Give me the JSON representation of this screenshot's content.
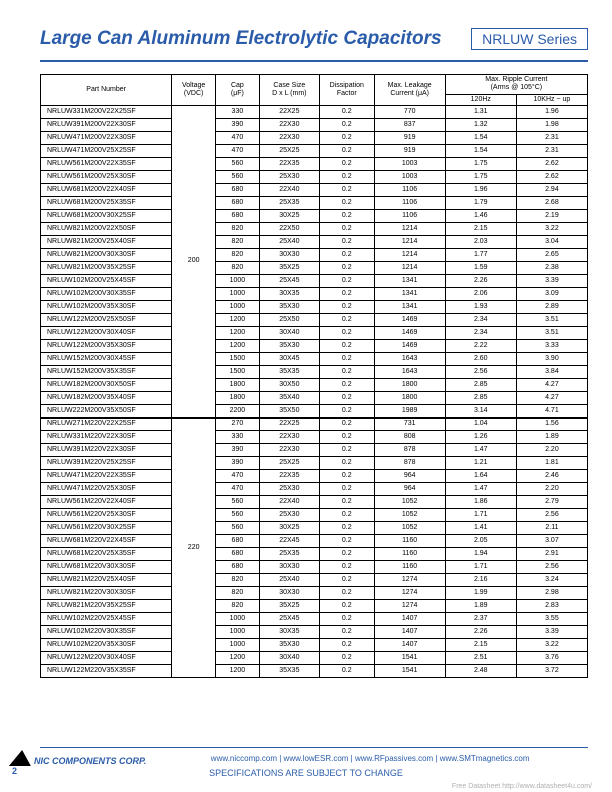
{
  "header": {
    "title": "Large Can Aluminum Electrolytic Capacitors",
    "series": "NRLUW Series"
  },
  "table": {
    "columns": {
      "pn": "Part Number",
      "voltage": "Voltage\n(VDC)",
      "cap": "Cap\n(μF)",
      "case": "Case Size\nD x L (mm)",
      "df": "Dissipation\nFactor",
      "leak": "Max. Leakage\nCurrent (μA)",
      "ripple_group": "Max. Ripple Current\n(Arms @ 105°C)",
      "r1": "120Hz",
      "r2": "10KHz ~ up"
    },
    "groups": [
      {
        "voltage": "200",
        "rows": [
          {
            "pn": "NRLUW331M200V22X25SF",
            "cap": "330",
            "case": "22X25",
            "df": "0.2",
            "leak": "770",
            "r1": "1.31",
            "r2": "1.96"
          },
          {
            "pn": "NRLUW391M200V22X30SF",
            "cap": "390",
            "case": "22X30",
            "df": "0.2",
            "leak": "837",
            "r1": "1.32",
            "r2": "1.98"
          },
          {
            "pn": "NRLUW471M200V22X30SF",
            "cap": "470",
            "case": "22X30",
            "df": "0.2",
            "leak": "919",
            "r1": "1.54",
            "r2": "2.31"
          },
          {
            "pn": "NRLUW471M200V25X25SF",
            "cap": "470",
            "case": "25X25",
            "df": "0.2",
            "leak": "919",
            "r1": "1.54",
            "r2": "2.31"
          },
          {
            "pn": "NRLUW561M200V22X35SF",
            "cap": "560",
            "case": "22X35",
            "df": "0.2",
            "leak": "1003",
            "r1": "1.75",
            "r2": "2.62"
          },
          {
            "pn": "NRLUW561M200V25X30SF",
            "cap": "560",
            "case": "25X30",
            "df": "0.2",
            "leak": "1003",
            "r1": "1.75",
            "r2": "2.62"
          },
          {
            "pn": "NRLUW681M200V22X40SF",
            "cap": "680",
            "case": "22X40",
            "df": "0.2",
            "leak": "1106",
            "r1": "1.96",
            "r2": "2.94"
          },
          {
            "pn": "NRLUW681M200V25X35SF",
            "cap": "680",
            "case": "25X35",
            "df": "0.2",
            "leak": "1106",
            "r1": "1.79",
            "r2": "2.68"
          },
          {
            "pn": "NRLUW681M200V30X25SF",
            "cap": "680",
            "case": "30X25",
            "df": "0.2",
            "leak": "1106",
            "r1": "1.46",
            "r2": "2.19"
          },
          {
            "pn": "NRLUW821M200V22X50SF",
            "cap": "820",
            "case": "22X50",
            "df": "0.2",
            "leak": "1214",
            "r1": "2.15",
            "r2": "3.22"
          },
          {
            "pn": "NRLUW821M200V25X40SF",
            "cap": "820",
            "case": "25X40",
            "df": "0.2",
            "leak": "1214",
            "r1": "2.03",
            "r2": "3.04"
          },
          {
            "pn": "NRLUW821M200V30X30SF",
            "cap": "820",
            "case": "30X30",
            "df": "0.2",
            "leak": "1214",
            "r1": "1.77",
            "r2": "2.65"
          },
          {
            "pn": "NRLUW821M200V35X25SF",
            "cap": "820",
            "case": "35X25",
            "df": "0.2",
            "leak": "1214",
            "r1": "1.59",
            "r2": "2.38"
          },
          {
            "pn": "NRLUW102M200V25X45SF",
            "cap": "1000",
            "case": "25X45",
            "df": "0.2",
            "leak": "1341",
            "r1": "2.26",
            "r2": "3.39"
          },
          {
            "pn": "NRLUW102M200V30X35SF",
            "cap": "1000",
            "case": "30X35",
            "df": "0.2",
            "leak": "1341",
            "r1": "2.06",
            "r2": "3.09"
          },
          {
            "pn": "NRLUW102M200V35X30SF",
            "cap": "1000",
            "case": "35X30",
            "df": "0.2",
            "leak": "1341",
            "r1": "1.93",
            "r2": "2.89"
          },
          {
            "pn": "NRLUW122M200V25X50SF",
            "cap": "1200",
            "case": "25X50",
            "df": "0.2",
            "leak": "1469",
            "r1": "2.34",
            "r2": "3.51"
          },
          {
            "pn": "NRLUW122M200V30X40SF",
            "cap": "1200",
            "case": "30X40",
            "df": "0.2",
            "leak": "1469",
            "r1": "2.34",
            "r2": "3.51"
          },
          {
            "pn": "NRLUW122M200V35X30SF",
            "cap": "1200",
            "case": "35X30",
            "df": "0.2",
            "leak": "1469",
            "r1": "2.22",
            "r2": "3.33"
          },
          {
            "pn": "NRLUW152M200V30X45SF",
            "cap": "1500",
            "case": "30X45",
            "df": "0.2",
            "leak": "1643",
            "r1": "2.60",
            "r2": "3.90"
          },
          {
            "pn": "NRLUW152M200V35X35SF",
            "cap": "1500",
            "case": "35X35",
            "df": "0.2",
            "leak": "1643",
            "r1": "2.56",
            "r2": "3.84"
          },
          {
            "pn": "NRLUW182M200V30X50SF",
            "cap": "1800",
            "case": "30X50",
            "df": "0.2",
            "leak": "1800",
            "r1": "2.85",
            "r2": "4.27"
          },
          {
            "pn": "NRLUW182M200V35X40SF",
            "cap": "1800",
            "case": "35X40",
            "df": "0.2",
            "leak": "1800",
            "r1": "2.85",
            "r2": "4.27"
          },
          {
            "pn": "NRLUW222M200V35X50SF",
            "cap": "2200",
            "case": "35X50",
            "df": "0.2",
            "leak": "1989",
            "r1": "3.14",
            "r2": "4.71"
          }
        ]
      },
      {
        "voltage": "220",
        "rows": [
          {
            "pn": "NRLUW271M220V22X25SF",
            "cap": "270",
            "case": "22X25",
            "df": "0.2",
            "leak": "731",
            "r1": "1.04",
            "r2": "1.56"
          },
          {
            "pn": "NRLUW331M220V22X30SF",
            "cap": "330",
            "case": "22X30",
            "df": "0.2",
            "leak": "808",
            "r1": "1.26",
            "r2": "1.89"
          },
          {
            "pn": "NRLUW391M220V22X30SF",
            "cap": "390",
            "case": "22X30",
            "df": "0.2",
            "leak": "878",
            "r1": "1.47",
            "r2": "2.20"
          },
          {
            "pn": "NRLUW391M220V25X25SF",
            "cap": "390",
            "case": "25X25",
            "df": "0.2",
            "leak": "878",
            "r1": "1.21",
            "r2": "1.81"
          },
          {
            "pn": "NRLUW471M220V22X35SF",
            "cap": "470",
            "case": "22X35",
            "df": "0.2",
            "leak": "964",
            "r1": "1.64",
            "r2": "2.46"
          },
          {
            "pn": "NRLUW471M220V25X30SF",
            "cap": "470",
            "case": "25X30",
            "df": "0.2",
            "leak": "964",
            "r1": "1.47",
            "r2": "2.20"
          },
          {
            "pn": "NRLUW561M220V22X40SF",
            "cap": "560",
            "case": "22X40",
            "df": "0.2",
            "leak": "1052",
            "r1": "1.86",
            "r2": "2.79"
          },
          {
            "pn": "NRLUW561M220V25X30SF",
            "cap": "560",
            "case": "25X30",
            "df": "0.2",
            "leak": "1052",
            "r1": "1.71",
            "r2": "2.56"
          },
          {
            "pn": "NRLUW561M220V30X25SF",
            "cap": "560",
            "case": "30X25",
            "df": "0.2",
            "leak": "1052",
            "r1": "1.41",
            "r2": "2.11"
          },
          {
            "pn": "NRLUW681M220V22X45SF",
            "cap": "680",
            "case": "22X45",
            "df": "0.2",
            "leak": "1160",
            "r1": "2.05",
            "r2": "3.07"
          },
          {
            "pn": "NRLUW681M220V25X35SF",
            "cap": "680",
            "case": "25X35",
            "df": "0.2",
            "leak": "1160",
            "r1": "1.94",
            "r2": "2.91"
          },
          {
            "pn": "NRLUW681M220V30X30SF",
            "cap": "680",
            "case": "30X30",
            "df": "0.2",
            "leak": "1160",
            "r1": "1.71",
            "r2": "2.56"
          },
          {
            "pn": "NRLUW821M220V25X40SF",
            "cap": "820",
            "case": "25X40",
            "df": "0.2",
            "leak": "1274",
            "r1": "2.16",
            "r2": "3.24"
          },
          {
            "pn": "NRLUW821M220V30X30SF",
            "cap": "820",
            "case": "30X30",
            "df": "0.2",
            "leak": "1274",
            "r1": "1.99",
            "r2": "2.98"
          },
          {
            "pn": "NRLUW821M220V35X25SF",
            "cap": "820",
            "case": "35X25",
            "df": "0.2",
            "leak": "1274",
            "r1": "1.89",
            "r2": "2.83"
          },
          {
            "pn": "NRLUW102M220V25X45SF",
            "cap": "1000",
            "case": "25X45",
            "df": "0.2",
            "leak": "1407",
            "r1": "2.37",
            "r2": "3.55"
          },
          {
            "pn": "NRLUW102M220V30X35SF",
            "cap": "1000",
            "case": "30X35",
            "df": "0.2",
            "leak": "1407",
            "r1": "2.26",
            "r2": "3.39"
          },
          {
            "pn": "NRLUW102M220V35X30SF",
            "cap": "1000",
            "case": "35X30",
            "df": "0.2",
            "leak": "1407",
            "r1": "2.15",
            "r2": "3.22"
          },
          {
            "pn": "NRLUW122M220V30X40SF",
            "cap": "1200",
            "case": "30X40",
            "df": "0.2",
            "leak": "1541",
            "r1": "2.51",
            "r2": "3.76"
          },
          {
            "pn": "NRLUW122M220V35X35SF",
            "cap": "1200",
            "case": "35X35",
            "df": "0.2",
            "leak": "1541",
            "r1": "2.48",
            "r2": "3.72"
          }
        ]
      }
    ]
  },
  "footer": {
    "company": "NIC COMPONENTS CORP.",
    "links": "www.niccomp.com   |   www.lowESR.com   |   www.RFpassives.com   |   www.SMTmagnetics.com",
    "note": "SPECIFICATIONS ARE SUBJECT TO CHANGE",
    "watermark": "Free Datasheet http://www.datasheet4u.com/",
    "page": "2"
  }
}
